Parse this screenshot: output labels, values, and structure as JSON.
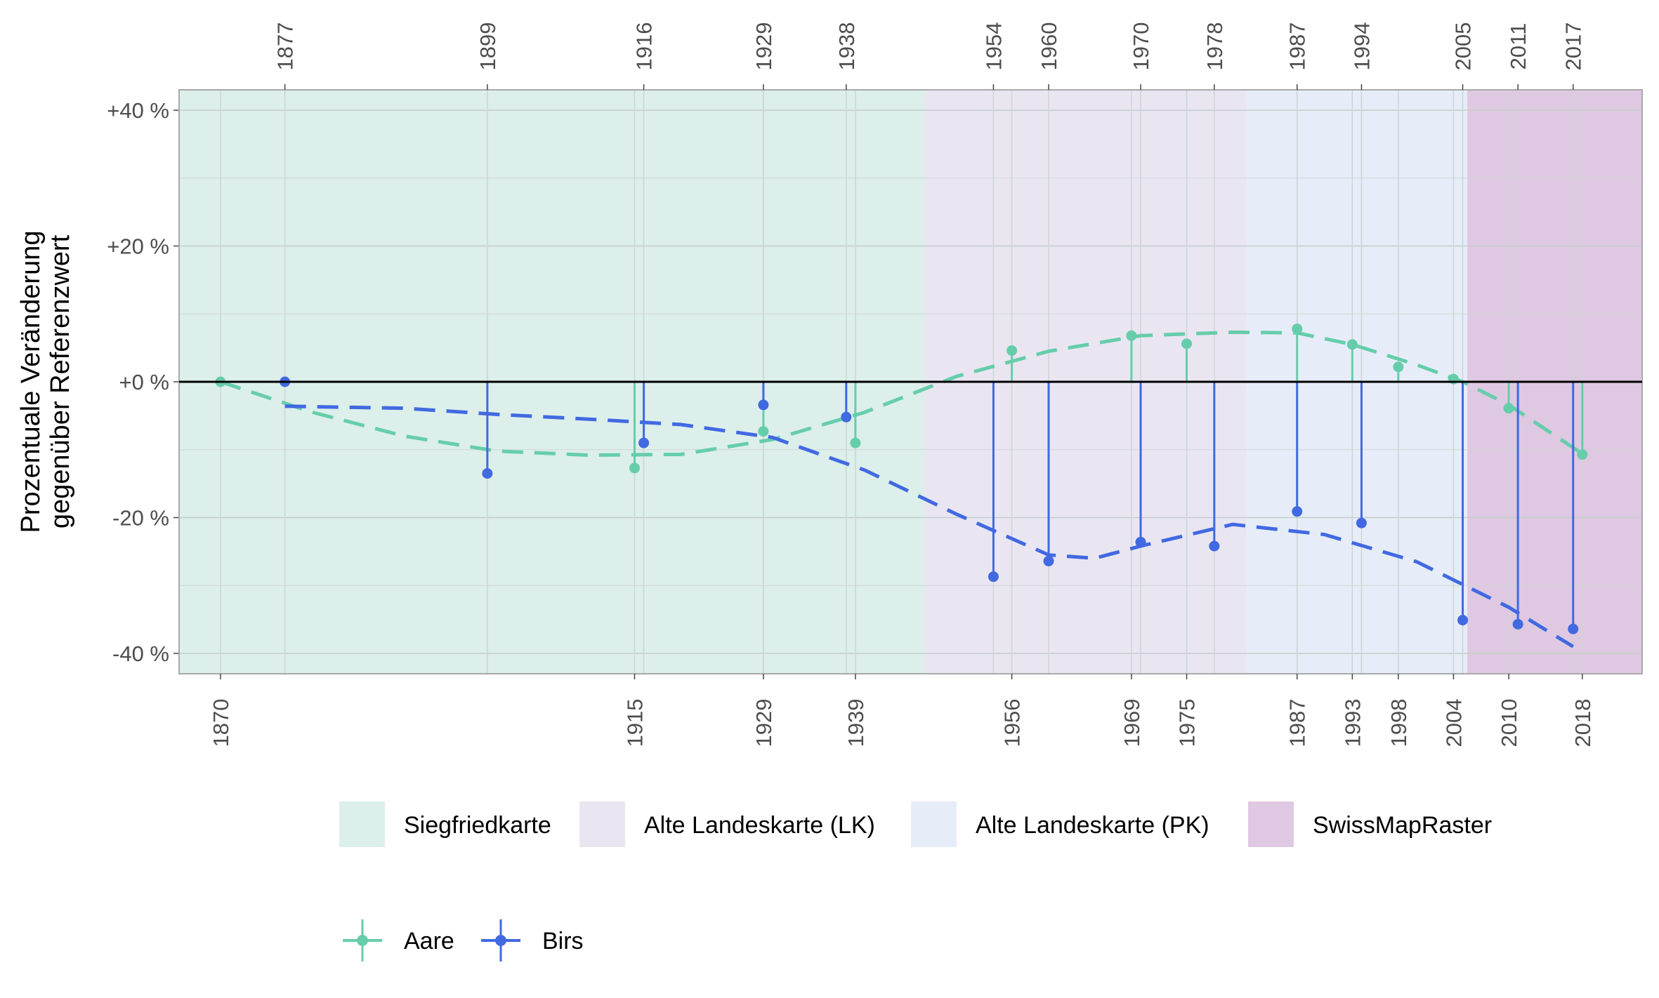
{
  "chart_data": {
    "type": "line",
    "title": "",
    "ylabel_lines": [
      "Prozentuale Veränderung",
      "gegenüber Referenzwert"
    ],
    "xlabel": "",
    "xlim": [
      1865.5,
      2024.5
    ],
    "ylim": [
      -43,
      43
    ],
    "y_ticks": [
      {
        "value": 40,
        "label": "+40 %"
      },
      {
        "value": 20,
        "label": "+20 %"
      },
      {
        "value": 0,
        "label": "+0 %"
      },
      {
        "value": -20,
        "label": "-20 %"
      },
      {
        "value": -40,
        "label": "-40 %"
      }
    ],
    "grid": true,
    "reference_line": 0,
    "map_periods": [
      {
        "name": "Siegfriedkarte",
        "start": 1865.5,
        "end": 1946.5,
        "color": "#dcefea"
      },
      {
        "name": "Alte Landeskarte (LK)",
        "start": 1946.5,
        "end": 1981.5,
        "color": "#e9e6f2"
      },
      {
        "name": "Alte Landeskarte (PK)",
        "start": 1981.5,
        "end": 2005.5,
        "color": "#e6edf8"
      },
      {
        "name": "SwissMapRaster",
        "start": 2005.5,
        "end": 2024.5,
        "color": "#dfc8e1"
      }
    ],
    "series": [
      {
        "name": "Aare",
        "color": "#66cdaa",
        "points": [
          {
            "x": 1870,
            "y": 0
          },
          {
            "x": 1915,
            "y": -12.7
          },
          {
            "x": 1929,
            "y": -7.3
          },
          {
            "x": 1939,
            "y": -9.0
          },
          {
            "x": 1956,
            "y": 4.6
          },
          {
            "x": 1969,
            "y": 6.8
          },
          {
            "x": 1975,
            "y": 5.6
          },
          {
            "x": 1987,
            "y": 7.8
          },
          {
            "x": 1993,
            "y": 5.5
          },
          {
            "x": 1998,
            "y": 2.2
          },
          {
            "x": 2004,
            "y": 0.4
          },
          {
            "x": 2010,
            "y": -3.9
          },
          {
            "x": 2018,
            "y": -10.7
          }
        ],
        "trend": [
          {
            "x": 1870,
            "y": 0
          },
          {
            "x": 1880,
            "y": -4.5
          },
          {
            "x": 1890,
            "y": -8.0
          },
          {
            "x": 1900,
            "y": -10.2
          },
          {
            "x": 1910,
            "y": -10.8
          },
          {
            "x": 1920,
            "y": -10.7
          },
          {
            "x": 1930,
            "y": -8.5
          },
          {
            "x": 1940,
            "y": -4.5
          },
          {
            "x": 1950,
            "y": 0.8
          },
          {
            "x": 1960,
            "y": 4.5
          },
          {
            "x": 1970,
            "y": 6.8
          },
          {
            "x": 1980,
            "y": 7.3
          },
          {
            "x": 1987,
            "y": 7.2
          },
          {
            "x": 1993,
            "y": 5.5
          },
          {
            "x": 2000,
            "y": 2.5
          },
          {
            "x": 2005,
            "y": 0.0
          },
          {
            "x": 2010,
            "y": -3.4
          },
          {
            "x": 2018,
            "y": -10.6
          }
        ]
      },
      {
        "name": "Birs",
        "color": "#4169e1",
        "points": [
          {
            "x": 1877,
            "y": 0
          },
          {
            "x": 1899,
            "y": -13.5
          },
          {
            "x": 1916,
            "y": -9.0
          },
          {
            "x": 1929,
            "y": -3.4
          },
          {
            "x": 1938,
            "y": -5.2
          },
          {
            "x": 1954,
            "y": -28.7
          },
          {
            "x": 1960,
            "y": -26.4
          },
          {
            "x": 1970,
            "y": -23.6
          },
          {
            "x": 1978,
            "y": -24.2
          },
          {
            "x": 1987,
            "y": -19.1
          },
          {
            "x": 1994,
            "y": -20.8
          },
          {
            "x": 2005,
            "y": -35.1
          },
          {
            "x": 2011,
            "y": -35.7
          },
          {
            "x": 2017,
            "y": -36.4
          }
        ],
        "trend": [
          {
            "x": 1877,
            "y": -3.6
          },
          {
            "x": 1890,
            "y": -3.9
          },
          {
            "x": 1900,
            "y": -4.8
          },
          {
            "x": 1910,
            "y": -5.5
          },
          {
            "x": 1920,
            "y": -6.3
          },
          {
            "x": 1930,
            "y": -8.2
          },
          {
            "x": 1940,
            "y": -13.0
          },
          {
            "x": 1950,
            "y": -19.5
          },
          {
            "x": 1960,
            "y": -25.5
          },
          {
            "x": 1965,
            "y": -26.0
          },
          {
            "x": 1970,
            "y": -24.2
          },
          {
            "x": 1980,
            "y": -21.0
          },
          {
            "x": 1990,
            "y": -22.5
          },
          {
            "x": 2000,
            "y": -26.5
          },
          {
            "x": 2010,
            "y": -33.2
          },
          {
            "x": 2017,
            "y": -39.0
          }
        ]
      }
    ],
    "legend_periods_title": "",
    "legend_series_title": ""
  }
}
